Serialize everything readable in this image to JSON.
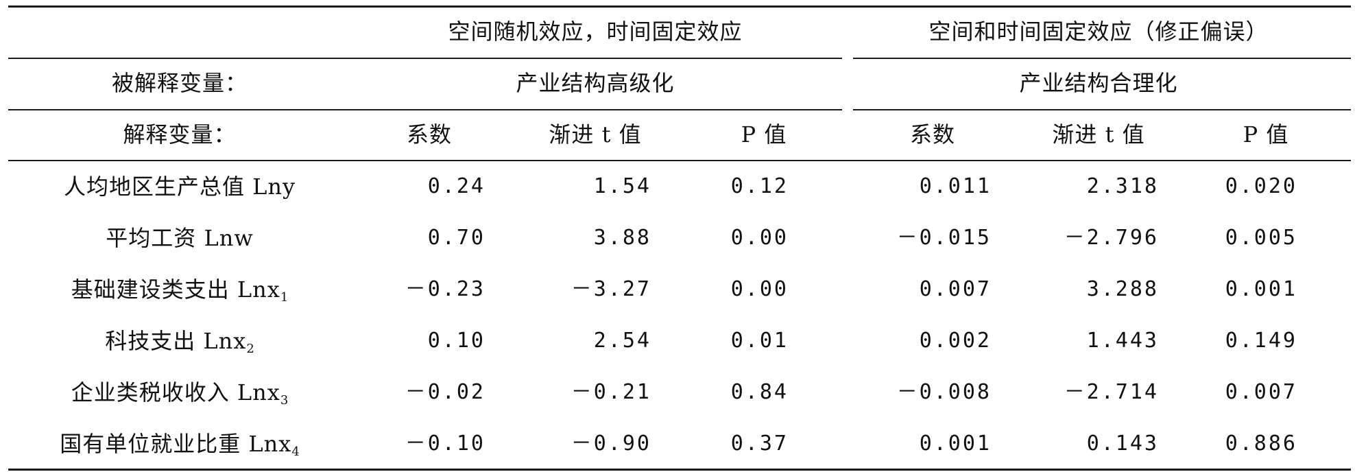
{
  "header": {
    "group_left": "空间随机效应，时间固定效应",
    "group_right": "空间和时间固定效应（修正偏误）",
    "dependent_label": "被解释变量：",
    "dependent_left": "产业结构高级化",
    "dependent_right": "产业结构合理化",
    "explanatory_label": "解释变量：",
    "col_coef": "系数",
    "col_t": "渐进 t 值",
    "col_p": "P 值"
  },
  "rows": [
    {
      "name": "人均地区生产总值 Lny",
      "sub": "",
      "l_coef": "0.24",
      "l_t": "1.54",
      "l_p": "0.12",
      "r_coef": "0.011",
      "r_t": "2.318",
      "r_p": "0.020"
    },
    {
      "name": "平均工资 Lnw",
      "sub": "",
      "l_coef": "0.70",
      "l_t": "3.88",
      "l_p": "0.00",
      "r_coef": "－0.015",
      "r_t": "－2.796",
      "r_p": "0.005"
    },
    {
      "name": "基础建设类支出 Lnx",
      "sub": "1",
      "l_coef": "－0.23",
      "l_t": "－3.27",
      "l_p": "0.00",
      "r_coef": "0.007",
      "r_t": "3.288",
      "r_p": "0.001"
    },
    {
      "name": "科技支出 Lnx",
      "sub": "2",
      "l_coef": "0.10",
      "l_t": "2.54",
      "l_p": "0.01",
      "r_coef": "0.002",
      "r_t": "1.443",
      "r_p": "0.149"
    },
    {
      "name": "企业类税收收入 Lnx",
      "sub": "3",
      "l_coef": "－0.02",
      "l_t": "－0.21",
      "l_p": "0.84",
      "r_coef": "－0.008",
      "r_t": "－2.714",
      "r_p": "0.007"
    },
    {
      "name": "国有单位就业比重 Lnx",
      "sub": "4",
      "l_coef": "－0.10",
      "l_t": "－0.90",
      "l_p": "0.37",
      "r_coef": "0.001",
      "r_t": "0.143",
      "r_p": "0.886"
    }
  ]
}
